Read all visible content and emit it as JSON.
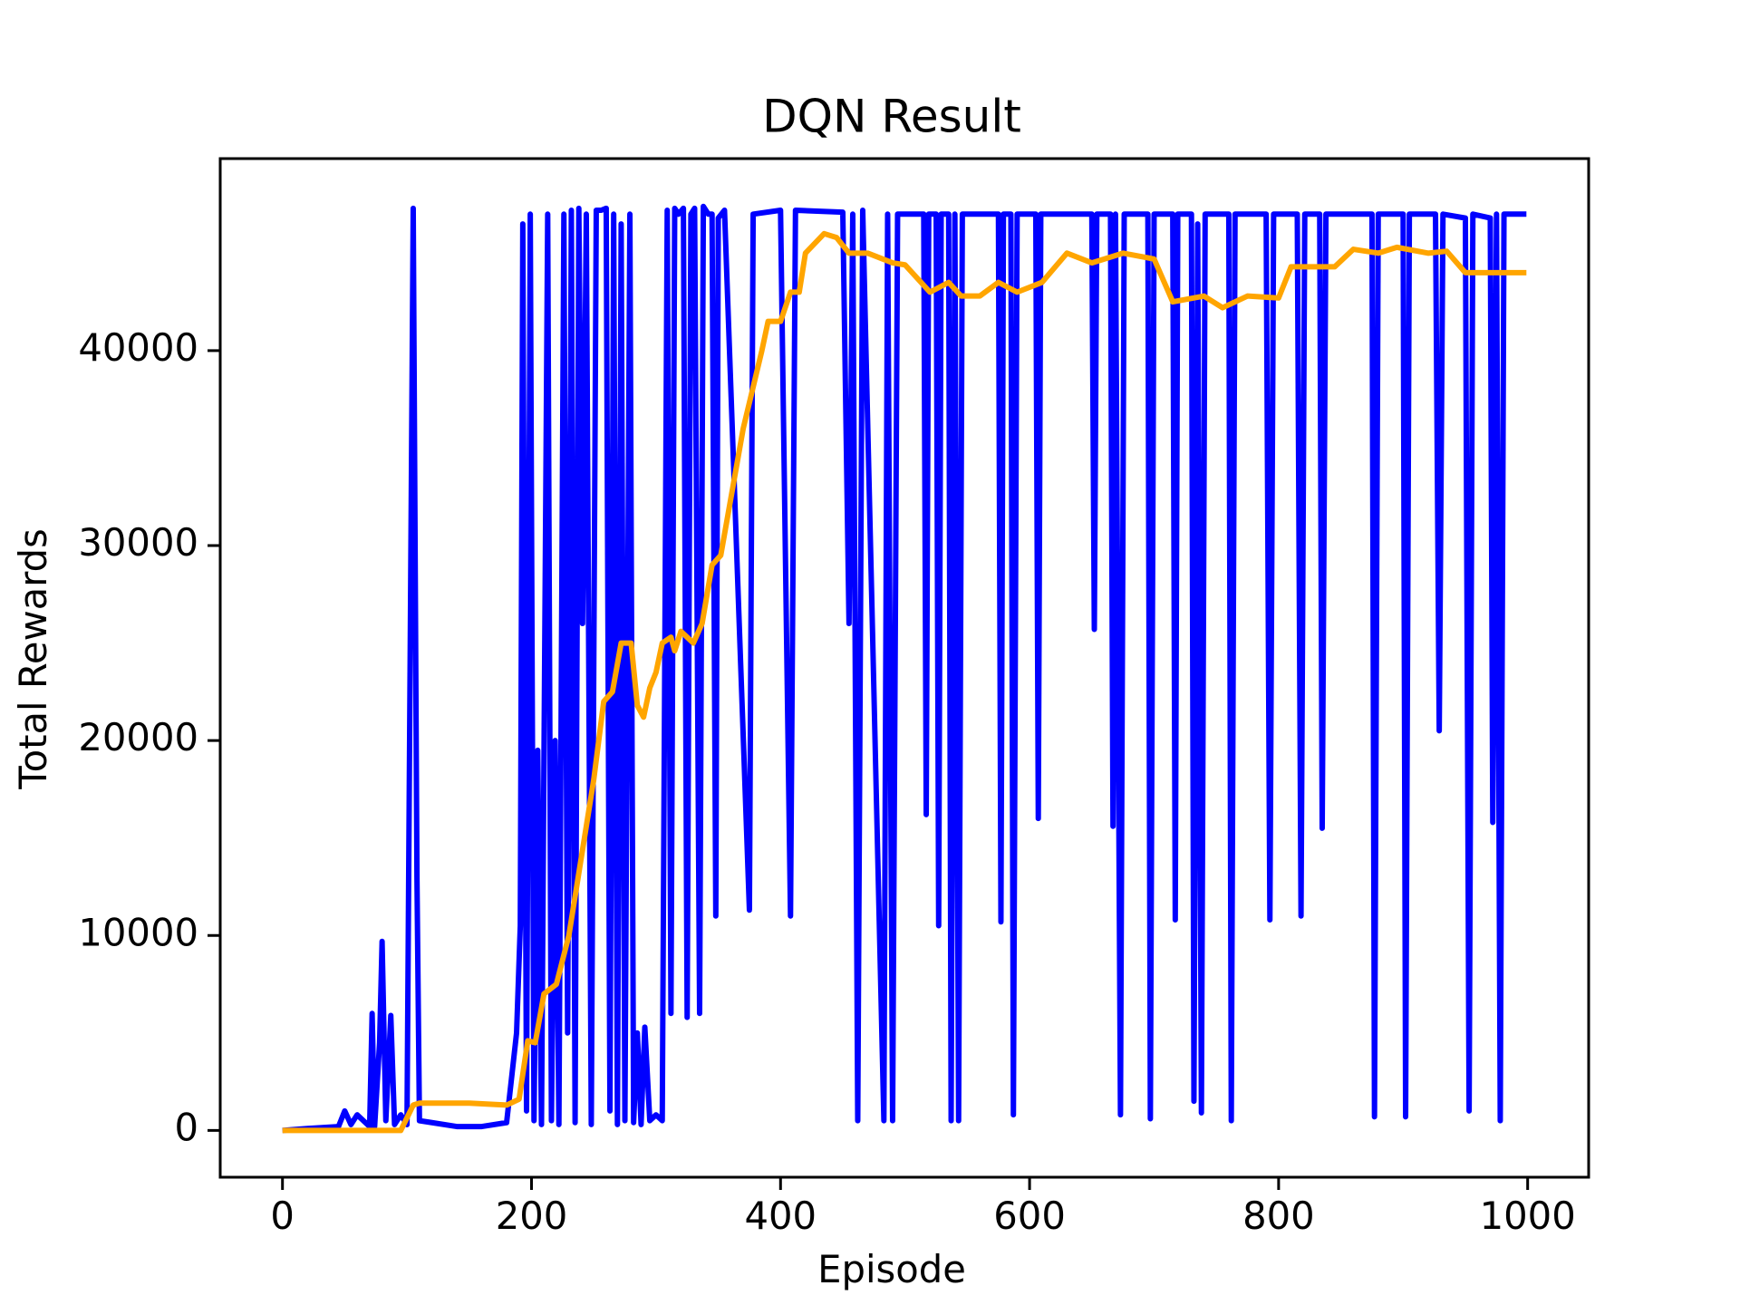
{
  "chart_data": {
    "type": "line",
    "title": "DQN Result",
    "x_label": "Episode",
    "y_label": "Total Rewards",
    "xlim": [
      -50,
      1049
    ],
    "ylim": [
      -2400,
      49850
    ],
    "xticks": [
      0,
      200,
      400,
      600,
      800,
      1000
    ],
    "yticks": [
      0,
      10000,
      20000,
      30000,
      40000
    ],
    "series": [
      {
        "color": "#0000ff",
        "x": [
          0,
          20,
          45,
          50,
          55,
          60,
          70,
          72,
          74,
          78,
          80,
          83,
          87,
          90,
          95,
          100,
          105,
          108,
          110,
          120,
          140,
          160,
          180,
          188,
          191,
          193,
          196,
          199,
          202,
          205,
          208,
          213,
          216,
          219,
          222,
          226,
          229,
          232,
          235,
          238,
          241,
          244,
          248,
          252,
          256,
          260,
          263,
          266,
          269,
          272,
          275,
          279,
          282,
          285,
          288,
          291,
          295,
          300,
          305,
          309,
          312,
          315,
          318,
          322,
          325,
          328,
          331,
          335,
          338,
          342,
          345,
          348,
          350,
          355,
          375,
          378,
          400,
          408,
          412,
          450,
          455,
          458,
          462,
          466,
          483,
          486,
          490,
          494,
          515,
          517,
          519,
          525,
          527,
          529,
          535,
          537,
          540,
          543,
          546,
          575,
          577,
          579,
          585,
          587,
          590,
          605,
          607,
          609,
          650,
          652,
          654,
          665,
          667,
          669,
          673,
          676,
          695,
          697,
          700,
          715,
          717,
          719,
          730,
          732,
          735,
          738,
          741,
          760,
          762,
          765,
          790,
          793,
          796,
          815,
          818,
          821,
          833,
          835,
          838,
          875,
          877,
          880,
          900,
          902,
          905,
          926,
          929,
          932,
          950,
          953,
          956,
          970,
          972,
          975,
          978,
          981,
          999
        ],
        "values": [
          0,
          100,
          200,
          1000,
          300,
          800,
          200,
          6000,
          200,
          4500,
          9700,
          500,
          5900,
          300,
          800,
          300,
          47300,
          13000,
          500,
          400,
          200,
          200,
          400,
          5000,
          10500,
          46500,
          1000,
          47000,
          500,
          19500,
          300,
          47000,
          500,
          20000,
          300,
          47000,
          5000,
          47200,
          400,
          47300,
          26000,
          47000,
          300,
          47200,
          47200,
          47300,
          1000,
          47000,
          300,
          46500,
          500,
          47000,
          400,
          5000,
          300,
          5300,
          500,
          800,
          500,
          47200,
          6000,
          47300,
          47000,
          47300,
          5800,
          47000,
          47300,
          6000,
          47400,
          47000,
          47000,
          11000,
          46800,
          47200,
          11300,
          47000,
          47200,
          11000,
          47200,
          47100,
          26000,
          47000,
          500,
          47200,
          500,
          47000,
          500,
          47000,
          47000,
          16200,
          47000,
          47000,
          10500,
          47000,
          47000,
          500,
          47000,
          500,
          47000,
          47000,
          10700,
          47000,
          47000,
          800,
          47000,
          47000,
          16000,
          47000,
          47000,
          25700,
          47000,
          47000,
          15600,
          47000,
          800,
          47000,
          47000,
          600,
          47000,
          47000,
          10800,
          47000,
          47000,
          1500,
          46500,
          900,
          47000,
          47000,
          500,
          47000,
          47000,
          10800,
          47000,
          47000,
          11000,
          47000,
          47000,
          15500,
          47000,
          47000,
          700,
          47000,
          47000,
          700,
          47000,
          47000,
          20500,
          47000,
          46800,
          1000,
          47000,
          46800,
          15800,
          47000,
          500,
          47000,
          47000
        ]
      },
      {
        "color": "#ffa500",
        "x": [
          0,
          95,
          105,
          110,
          150,
          180,
          190,
          197,
          203,
          210,
          220,
          230,
          240,
          250,
          258,
          265,
          272,
          280,
          285,
          290,
          295,
          300,
          305,
          312,
          315,
          320,
          330,
          337,
          345,
          352,
          370,
          385,
          390,
          400,
          408,
          415,
          420,
          435,
          445,
          455,
          470,
          490,
          500,
          520,
          535,
          545,
          560,
          575,
          590,
          610,
          630,
          650,
          675,
          700,
          715,
          740,
          755,
          775,
          800,
          810,
          845,
          860,
          880,
          895,
          920,
          935,
          950,
          999
        ],
        "values": [
          0,
          0,
          1300,
          1400,
          1400,
          1300,
          1600,
          4600,
          4500,
          7000,
          7500,
          10000,
          14000,
          18000,
          22000,
          22500,
          25000,
          25000,
          21800,
          21200,
          22700,
          23500,
          25000,
          25300,
          24600,
          25600,
          25000,
          26000,
          29000,
          29500,
          36000,
          40000,
          41500,
          41500,
          43000,
          43000,
          45000,
          46000,
          45800,
          45000,
          45000,
          44500,
          44400,
          43000,
          43500,
          42800,
          42800,
          43500,
          43000,
          43500,
          45000,
          44500,
          45000,
          44700,
          42500,
          42800,
          42200,
          42800,
          42700,
          44300,
          44300,
          45200,
          45000,
          45300,
          45000,
          45100,
          44000,
          44000
        ]
      }
    ]
  }
}
